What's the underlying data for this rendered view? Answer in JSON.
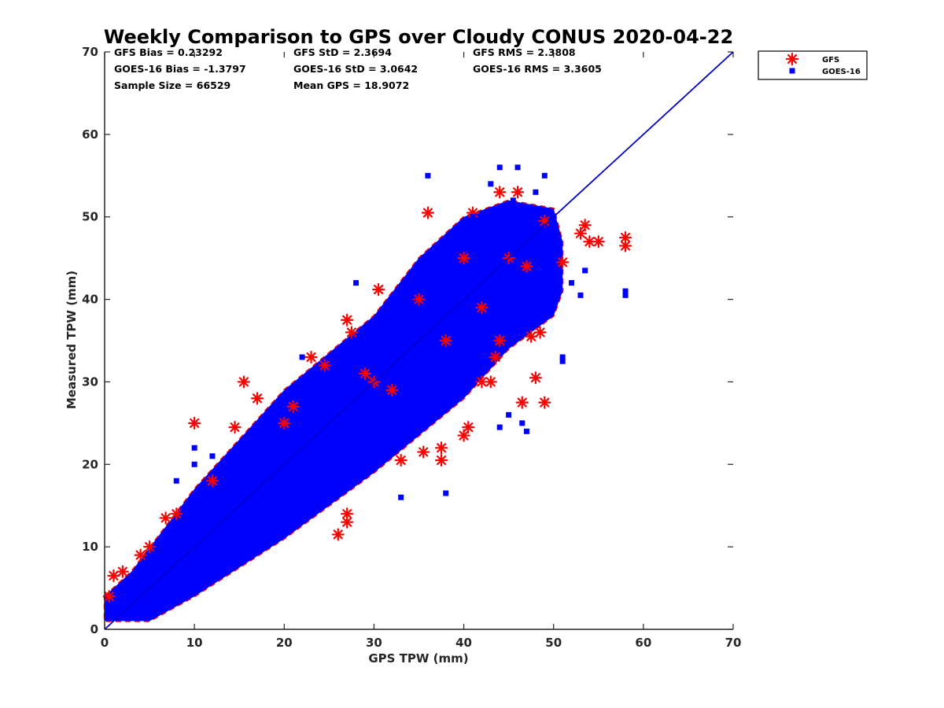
{
  "chart_data": {
    "type": "scatter",
    "title": "Weekly Comparison to GPS over Cloudy CONUS 2020-04-22",
    "xlabel": "GPS TPW (mm)",
    "ylabel": "Measured TPW (mm)",
    "xlim": [
      0,
      70
    ],
    "ylim": [
      0,
      70
    ],
    "xticks": [
      "0",
      "10",
      "20",
      "30",
      "40",
      "50",
      "60",
      "70"
    ],
    "yticks": [
      "0",
      "10",
      "20",
      "30",
      "40",
      "50",
      "60",
      "70"
    ],
    "grid": false,
    "legend_position": "outside top-right",
    "reference_line": {
      "x": [
        0,
        70
      ],
      "y": [
        0,
        70
      ],
      "color": "#0000cc"
    },
    "series": [
      {
        "name": "GFS",
        "marker": "asterisk",
        "color": "#ff0000",
        "points": [
          [
            10,
            25
          ],
          [
            15.5,
            30
          ],
          [
            14.5,
            24.5
          ],
          [
            26,
            11.5
          ],
          [
            27,
            13
          ],
          [
            27,
            14
          ],
          [
            30.5,
            41.2
          ],
          [
            27,
            37.5
          ],
          [
            27.5,
            36
          ],
          [
            24.5,
            32
          ],
          [
            29,
            31
          ],
          [
            37.5,
            22
          ],
          [
            37.5,
            20.5
          ],
          [
            35.5,
            21.5
          ],
          [
            33,
            20.5
          ],
          [
            36,
            50.5
          ],
          [
            41,
            50.5
          ],
          [
            46,
            53
          ],
          [
            46.5,
            27.5
          ],
          [
            49,
            27.5
          ],
          [
            47.5,
            35.5
          ],
          [
            48.5,
            36
          ],
          [
            53,
            48
          ],
          [
            54,
            47
          ],
          [
            53.5,
            49
          ],
          [
            55,
            47
          ],
          [
            58,
            47.5
          ],
          [
            58,
            46.5
          ],
          [
            51,
            44.5
          ],
          [
            47,
            44
          ],
          [
            44,
            53
          ],
          [
            43.5,
            33
          ],
          [
            43,
            30
          ],
          [
            40,
            23.5
          ],
          [
            40.5,
            24.5
          ],
          [
            42,
            30
          ],
          [
            48,
            30.5
          ],
          [
            44,
            35
          ],
          [
            45,
            45
          ],
          [
            49,
            49.5
          ],
          [
            6.8,
            13.5
          ],
          [
            1,
            6.5
          ],
          [
            0.5,
            4
          ],
          [
            4,
            9
          ],
          [
            5,
            10
          ],
          [
            2,
            7
          ],
          [
            30,
            30
          ],
          [
            20,
            25
          ],
          [
            21,
            27
          ],
          [
            35,
            40
          ],
          [
            40,
            45
          ],
          [
            12,
            18
          ],
          [
            8,
            14
          ],
          [
            17,
            28
          ],
          [
            23,
            33
          ],
          [
            42,
            39
          ],
          [
            32,
            29
          ],
          [
            38,
            35
          ]
        ]
      },
      {
        "name": "GOES-16",
        "marker": "square",
        "color": "#0000ff",
        "points": [
          [
            36,
            55
          ],
          [
            44,
            56
          ],
          [
            46,
            56
          ],
          [
            45.5,
            52
          ],
          [
            43,
            54
          ],
          [
            43,
            50
          ],
          [
            50,
            50
          ],
          [
            53.5,
            43.5
          ],
          [
            53,
            40.5
          ],
          [
            58,
            41
          ],
          [
            58,
            40.5
          ],
          [
            51,
            33
          ],
          [
            51,
            32.5
          ],
          [
            44,
            24.5
          ],
          [
            45,
            26
          ],
          [
            46.5,
            25
          ],
          [
            47,
            24
          ],
          [
            35,
            26
          ],
          [
            38,
            16.5
          ],
          [
            28,
            42
          ],
          [
            22,
            33
          ],
          [
            33,
            16
          ],
          [
            10,
            20
          ],
          [
            10,
            22
          ],
          [
            8,
            18
          ],
          [
            12,
            21
          ],
          [
            48,
            53
          ],
          [
            41,
            50
          ],
          [
            49,
            55
          ],
          [
            42,
            44
          ],
          [
            33,
            35
          ],
          [
            47.5,
            45
          ],
          [
            52,
            42
          ]
        ]
      }
    ],
    "stats": [
      [
        "GFS Bias = 0.23292",
        "GFS StD = 2.3694",
        "GFS RMS = 2.3808"
      ],
      [
        "GOES-16 Bias = -1.3797",
        "GOES-16 StD = 3.0642",
        "GOES-16 RMS = 3.3605"
      ],
      [
        "Sample Size = 66529",
        "Mean GPS = 18.9072",
        ""
      ]
    ]
  }
}
